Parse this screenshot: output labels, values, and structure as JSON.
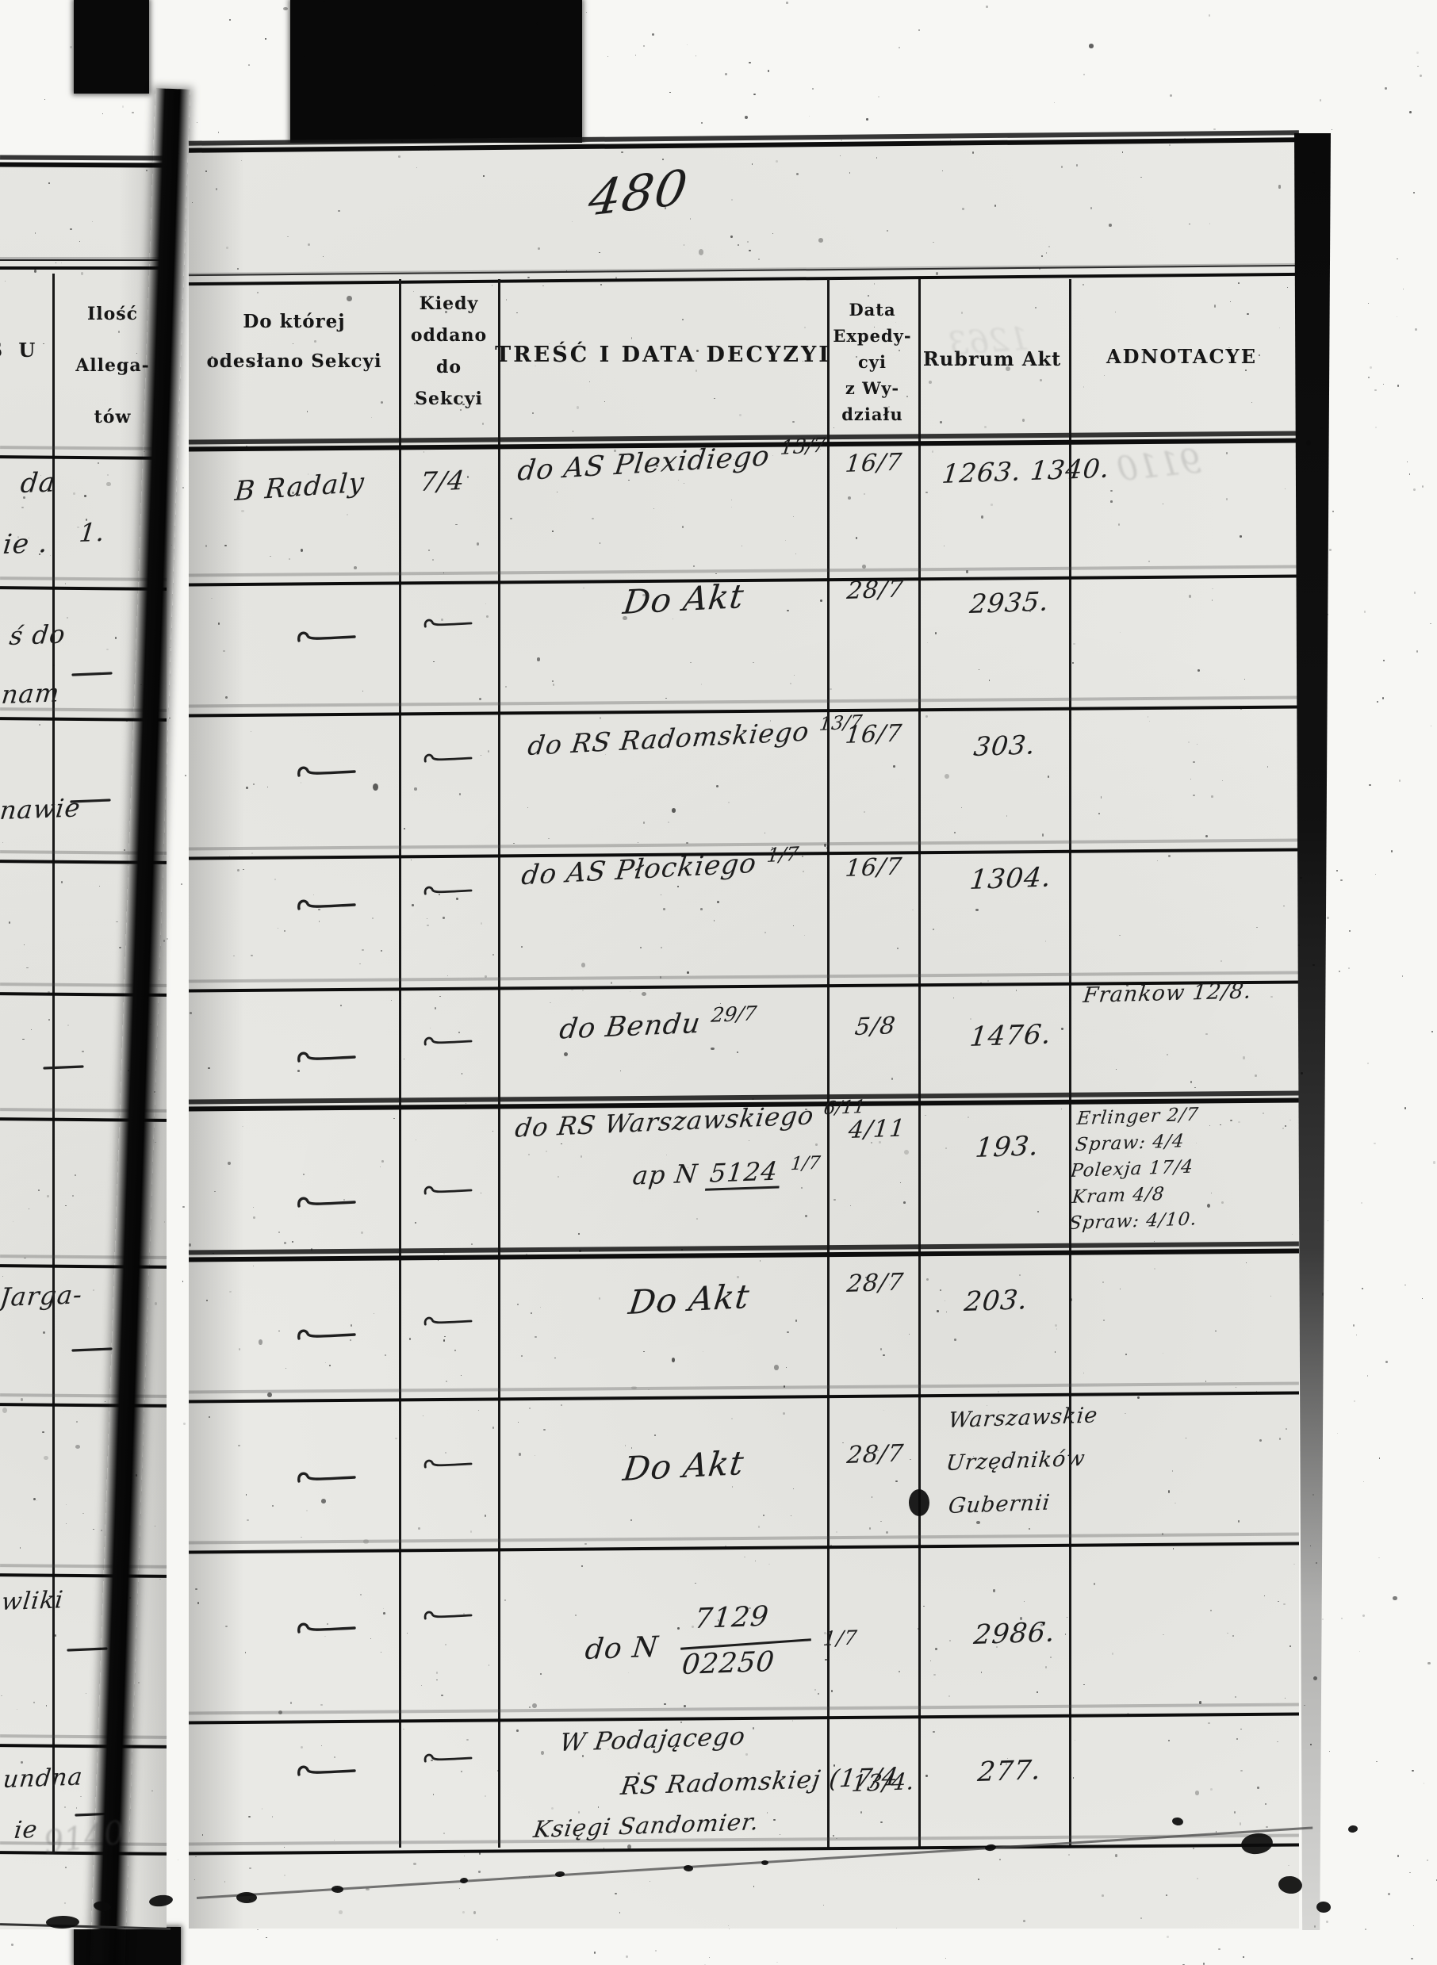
{
  "page_number": "480",
  "headers": {
    "left_partial": "S U",
    "allegatow": [
      "Ilość",
      "Allega-",
      "tów"
    ],
    "sekcya": [
      "Do której",
      "odesłano Sekcyi"
    ],
    "kiedy": [
      "Kiedy",
      "oddano",
      "do",
      "Sekcyi"
    ],
    "tresc": "TREŚĆ I DATA DECYZYI",
    "expedycya": [
      "Data",
      "Expedy-",
      "cyi",
      "z Wy-",
      "działu"
    ],
    "rubrum": "Rubrum Akt",
    "adnotacye": "ADNOTACYE"
  },
  "rows": [
    {
      "sekcya": "B Radaly",
      "kiedy": "7/4",
      "tresc": "do AS Plexidiego",
      "tresc_date": "13/7",
      "exped": "16/7",
      "rubrum": "1263. 1340."
    },
    {
      "sekcya": "〃",
      "kiedy": "〃",
      "tresc": "Do Akt",
      "exped": "28/7",
      "rubrum": "2935."
    },
    {
      "sekcya": "〃",
      "kiedy": "〃",
      "tresc": "do RS Radomskiego",
      "tresc_date": "13/7",
      "exped": "16/7",
      "rubrum": "303."
    },
    {
      "sekcya": "〃",
      "kiedy": "〃",
      "tresc": "do AS Płockiego",
      "tresc_date": "1/7",
      "exped": "16/7",
      "rubrum": "1304."
    },
    {
      "sekcya": "〃",
      "kiedy": "〃",
      "tresc": "do Bendu",
      "tresc_date": "29/7",
      "exped": "5/8",
      "rubrum": "1476.",
      "adnot": [
        "Frankow 12/8."
      ]
    },
    {
      "sekcya": "〃",
      "kiedy": "〃",
      "tresc": "do RS Warszawskiego",
      "tresc_date": "6/11",
      "tresc2_pre": "ap N",
      "tresc2_num": "5124",
      "tresc2_date": "1/7",
      "exped": "4/11",
      "rubrum": "193.",
      "adnot": [
        "Erlinger 2/7",
        "Spraw: 4/4",
        "Polexja 17/4",
        "Kram 4/8",
        "Spraw: 4/10."
      ]
    },
    {
      "sekcya": "〃",
      "kiedy": "〃",
      "tresc": "Do Akt",
      "exped": "28/7",
      "rubrum": "203."
    },
    {
      "sekcya": "〃",
      "kiedy": "〃",
      "tresc": "Do Akt",
      "exped": "28/7",
      "rubrum_lines": [
        "Warszawskie",
        "Urzędników",
        "Gubernii"
      ]
    },
    {
      "sekcya": "〃",
      "kiedy": "〃",
      "tresc_pre": "do N",
      "tresc_num": "7129",
      "tresc_den": "02250",
      "tresc_date": "1/7",
      "exped": "",
      "rubrum": "2986."
    },
    {
      "sekcya": "〃",
      "kiedy": "〃",
      "tresc_lines": [
        "W Podającego",
        "RS Radomskiej (17/4",
        "Księgi Sandomier."
      ],
      "exped": "13/4.",
      "rubrum": "277."
    }
  ],
  "left_rows": [
    {
      "fragments": [
        "da",
        "ie ."
      ],
      "allegaty": "1."
    },
    {
      "fragments": [
        "ś do",
        "nam"
      ],
      "allegaty": "〃"
    },
    {
      "fragments": [
        "nawie"
      ],
      "allegaty": "〃"
    },
    {
      "fragments": [],
      "allegaty": ""
    },
    {
      "fragments": [],
      "allegaty": "〃"
    },
    {
      "fragments": [],
      "allegaty": ""
    },
    {
      "fragments": [
        "Jarga-"
      ],
      "allegaty": "〃"
    },
    {
      "fragments": [],
      "allegaty": ""
    },
    {
      "fragments": [
        "wliki"
      ],
      "allegaty": "〃"
    },
    {
      "fragments": [
        "undna",
        "ie"
      ],
      "allegaty": "〃"
    }
  ],
  "ghost_marks": {
    "top_right": "9110",
    "bottom_left": "9140",
    "header_bleed": "1263"
  }
}
